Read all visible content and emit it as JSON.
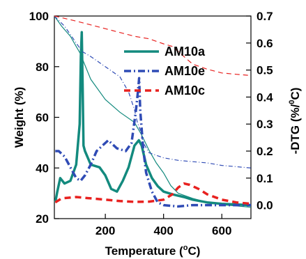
{
  "chart_data": {
    "type": "line",
    "title": "",
    "xlabel": {
      "prefix": "Temperature (",
      "sup": "o",
      "suffix": "C)"
    },
    "ylabel_left": "Weight (%)",
    "ylabel_right": {
      "prefix": "-DTG (%/",
      "sup": "0",
      "suffix": "C)"
    },
    "xlim": [
      25,
      700
    ],
    "ylim_left": [
      20,
      100
    ],
    "ylim_right": [
      -0.05,
      0.7
    ],
    "x_ticks": [
      200,
      400,
      600
    ],
    "y_left_ticks": [
      20,
      40,
      60,
      80,
      100
    ],
    "y_right_ticks": [
      "0.0",
      "0.1",
      "0.2",
      "0.3",
      "0.4",
      "0.5",
      "0.6",
      "0.7"
    ],
    "legend_position": "top-center",
    "series": [
      {
        "name": "AM10a",
        "color": "#138A7E",
        "dash": "solid",
        "weight": [
          [
            25,
            100
          ],
          [
            50,
            96
          ],
          [
            80,
            92
          ],
          [
            100,
            88
          ],
          [
            115,
            85
          ],
          [
            125,
            82
          ],
          [
            150,
            75
          ],
          [
            200,
            67
          ],
          [
            250,
            62
          ],
          [
            300,
            58
          ],
          [
            325,
            53
          ],
          [
            350,
            47
          ],
          [
            375,
            42
          ],
          [
            400,
            38
          ],
          [
            425,
            33
          ],
          [
            450,
            30
          ],
          [
            500,
            28
          ],
          [
            550,
            26.5
          ],
          [
            600,
            25.5
          ],
          [
            650,
            25
          ],
          [
            700,
            24.5
          ]
        ],
        "dtg": [
          [
            28,
            0.01
          ],
          [
            35,
            0.05
          ],
          [
            45,
            0.1
          ],
          [
            60,
            0.08
          ],
          [
            80,
            0.09
          ],
          [
            100,
            0.15
          ],
          [
            112,
            0.3
          ],
          [
            116,
            0.55
          ],
          [
            119,
            0.64
          ],
          [
            122,
            0.45
          ],
          [
            125,
            0.22
          ],
          [
            130,
            0.2
          ],
          [
            150,
            0.15
          ],
          [
            180,
            0.14
          ],
          [
            200,
            0.11
          ],
          [
            220,
            0.06
          ],
          [
            240,
            0.05
          ],
          [
            260,
            0.09
          ],
          [
            280,
            0.14
          ],
          [
            300,
            0.22
          ],
          [
            315,
            0.24
          ],
          [
            325,
            0.22
          ],
          [
            340,
            0.15
          ],
          [
            360,
            0.1
          ],
          [
            380,
            0.07
          ],
          [
            400,
            0.05
          ],
          [
            430,
            0.04
          ],
          [
            470,
            0.03
          ],
          [
            500,
            0.02
          ],
          [
            550,
            0.01
          ],
          [
            600,
            0.005
          ],
          [
            700,
            0.0
          ]
        ]
      },
      {
        "name": "AM10e",
        "color": "#2F4BB5",
        "dash": "dashdot",
        "weight": [
          [
            25,
            100
          ],
          [
            60,
            96
          ],
          [
            90,
            91
          ],
          [
            120,
            86
          ],
          [
            150,
            84
          ],
          [
            200,
            80
          ],
          [
            250,
            76
          ],
          [
            280,
            70
          ],
          [
            300,
            63
          ],
          [
            310,
            58
          ],
          [
            320,
            55
          ],
          [
            330,
            50
          ],
          [
            350,
            46
          ],
          [
            400,
            44
          ],
          [
            450,
            43
          ],
          [
            500,
            42.5
          ],
          [
            550,
            42
          ],
          [
            600,
            41
          ],
          [
            650,
            40.5
          ],
          [
            700,
            40
          ]
        ],
        "dtg": [
          [
            28,
            0.2
          ],
          [
            40,
            0.2
          ],
          [
            60,
            0.18
          ],
          [
            80,
            0.14
          ],
          [
            100,
            0.1
          ],
          [
            115,
            0.09
          ],
          [
            130,
            0.11
          ],
          [
            150,
            0.15
          ],
          [
            170,
            0.2
          ],
          [
            190,
            0.22
          ],
          [
            210,
            0.24
          ],
          [
            240,
            0.21
          ],
          [
            270,
            0.2
          ],
          [
            290,
            0.23
          ],
          [
            305,
            0.35
          ],
          [
            312,
            0.42
          ],
          [
            316,
            0.47
          ],
          [
            320,
            0.35
          ],
          [
            330,
            0.21
          ],
          [
            340,
            0.12
          ],
          [
            360,
            0.05
          ],
          [
            380,
            0.01
          ],
          [
            400,
            0.0
          ],
          [
            450,
            -0.005
          ],
          [
            500,
            0.0
          ],
          [
            700,
            0.0
          ]
        ]
      },
      {
        "name": "AM10c",
        "color": "#E8211F",
        "dash": "dashed",
        "weight": [
          [
            25,
            100
          ],
          [
            100,
            98
          ],
          [
            200,
            95
          ],
          [
            300,
            92
          ],
          [
            350,
            91
          ],
          [
            400,
            89
          ],
          [
            430,
            88
          ],
          [
            450,
            86
          ],
          [
            470,
            84
          ],
          [
            500,
            81
          ],
          [
            550,
            79
          ],
          [
            600,
            77.5
          ],
          [
            650,
            77
          ],
          [
            700,
            76.5
          ]
        ],
        "dtg": [
          [
            28,
            0.01
          ],
          [
            50,
            0.025
          ],
          [
            100,
            0.03
          ],
          [
            150,
            0.025
          ],
          [
            200,
            0.02
          ],
          [
            250,
            0.015
          ],
          [
            300,
            0.012
          ],
          [
            350,
            0.013
          ],
          [
            400,
            0.02
          ],
          [
            430,
            0.04
          ],
          [
            450,
            0.065
          ],
          [
            470,
            0.08
          ],
          [
            490,
            0.075
          ],
          [
            520,
            0.06
          ],
          [
            550,
            0.04
          ],
          [
            600,
            0.02
          ],
          [
            650,
            0.01
          ],
          [
            700,
            0.005
          ]
        ]
      }
    ]
  }
}
